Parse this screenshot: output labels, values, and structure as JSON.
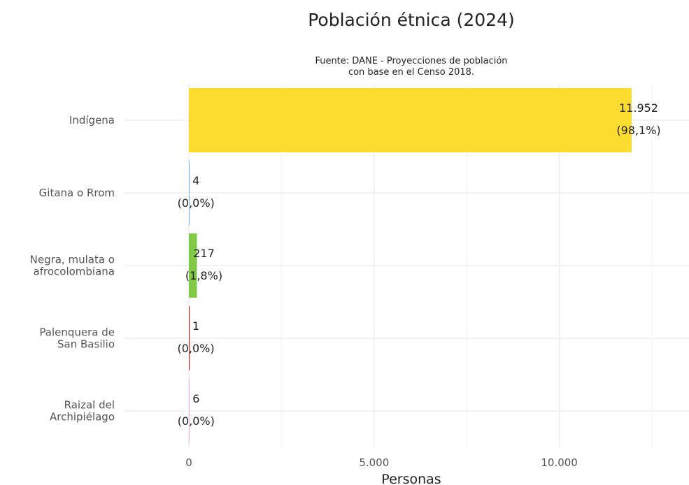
{
  "chart_data": {
    "type": "bar",
    "orientation": "horizontal",
    "title": "Población étnica (2024)",
    "subtitle": [
      "Fuente: DANE - Proyecciones de población",
      "con base en el Censo 2018."
    ],
    "xlabel": "Personas",
    "ylabel": "",
    "xlim": [
      0,
      13500
    ],
    "x_ticks": [
      0,
      5000,
      10000
    ],
    "x_tick_labels": [
      "0",
      "5.000",
      "10.000"
    ],
    "grid": true,
    "legend": "none",
    "categories": [
      [
        "Indígena"
      ],
      [
        "Gitana o Rrom"
      ],
      [
        "Negra, mulata o",
        "afrocolombiana"
      ],
      [
        "Palenquera de",
        "San Basilio"
      ],
      [
        "Raizal del",
        "Archipiélago"
      ]
    ],
    "values": [
      11952,
      4,
      217,
      1,
      6
    ],
    "value_labels": [
      "11.952",
      "4",
      "217",
      "1",
      "6"
    ],
    "percent_labels": [
      "(98,1%)",
      "(0,0%)",
      "(1,8%)",
      "(0,0%)",
      "(0,0%)"
    ],
    "colors": [
      "#fcdc2f",
      "#87bfe3",
      "#80c845",
      "#e0262a",
      "#f2b9d6"
    ]
  }
}
